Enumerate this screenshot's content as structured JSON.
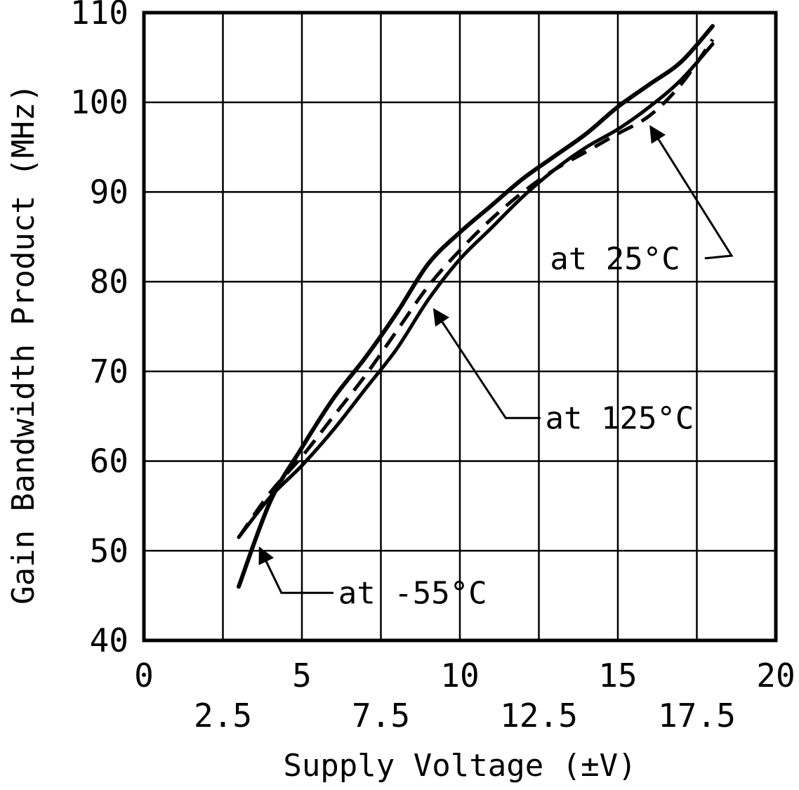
{
  "chart_data": {
    "type": "line",
    "title": "",
    "xlabel": "Supply Voltage (±V)",
    "ylabel": "Gain Bandwidth Product (MHz)",
    "xlim": [
      0,
      20
    ],
    "ylim": [
      40,
      110
    ],
    "x_major_ticks": [
      "0",
      "5",
      "10",
      "15",
      "20"
    ],
    "x_major_tick_values": [
      0,
      5,
      10,
      15,
      20
    ],
    "x_minor_ticks": [
      "2.5",
      "7.5",
      "12.5",
      "17.5"
    ],
    "x_minor_tick_values": [
      2.5,
      7.5,
      12.5,
      17.5
    ],
    "x_grid_every": 2.5,
    "y_ticks": [
      40,
      50,
      60,
      70,
      80,
      90,
      100,
      110
    ],
    "grid": true,
    "line_color": "#000000",
    "background_color": "#ffffff",
    "legend_position": "none (inline annotations with arrows)",
    "series": [
      {
        "name": "at -55°C",
        "style": "solid",
        "width": 6,
        "x": [
          3,
          4,
          5,
          6,
          7,
          8,
          9,
          10,
          11,
          12,
          13,
          14,
          15,
          16,
          17,
          18
        ],
        "y": [
          46,
          55.5,
          61.5,
          67,
          71.5,
          76.5,
          82,
          85.5,
          88.5,
          91.5,
          94,
          96.5,
          99.5,
          102,
          104.5,
          108.5
        ]
      },
      {
        "name": "at 25°C",
        "style": "dashed",
        "width": 5,
        "x": [
          3,
          4,
          5,
          6,
          7,
          8,
          9,
          10,
          11,
          12,
          13,
          14,
          15,
          16,
          17,
          18
        ],
        "y": [
          51.5,
          56.5,
          60.5,
          65,
          69.5,
          74.5,
          79.5,
          83.5,
          87,
          90,
          92.5,
          94.5,
          96.5,
          98.5,
          102,
          107
        ]
      },
      {
        "name": "at 125°C",
        "style": "solid",
        "width": 5,
        "x": [
          3,
          4,
          5,
          6,
          7,
          8,
          9,
          10,
          11,
          12,
          13,
          14,
          15,
          16,
          17,
          18
        ],
        "y": [
          51.5,
          56,
          59.5,
          63.5,
          68,
          72.5,
          78,
          82.5,
          86,
          89.5,
          92.5,
          95,
          97,
          99.5,
          102.5,
          106.5
        ]
      }
    ],
    "annotations": [
      {
        "label": "at 25°C",
        "text_x": 12.85,
        "text_y": 81.4,
        "anchor": "start",
        "leader": [
          [
            17.75,
            82.6
          ],
          [
            18.6,
            82.9
          ],
          [
            16.05,
            97.2
          ]
        ]
      },
      {
        "label": "at 125°C",
        "text_x": 12.7,
        "text_y": 63.6,
        "anchor": "start",
        "leader": [
          [
            12.55,
            64.8
          ],
          [
            11.45,
            64.8
          ],
          [
            9.2,
            76.8
          ]
        ]
      },
      {
        "label": "at -55°C",
        "text_x": 6.15,
        "text_y": 44.1,
        "anchor": "start",
        "leader": [
          [
            6.0,
            45.3
          ],
          [
            4.35,
            45.3
          ],
          [
            3.68,
            50.2
          ]
        ]
      }
    ]
  }
}
